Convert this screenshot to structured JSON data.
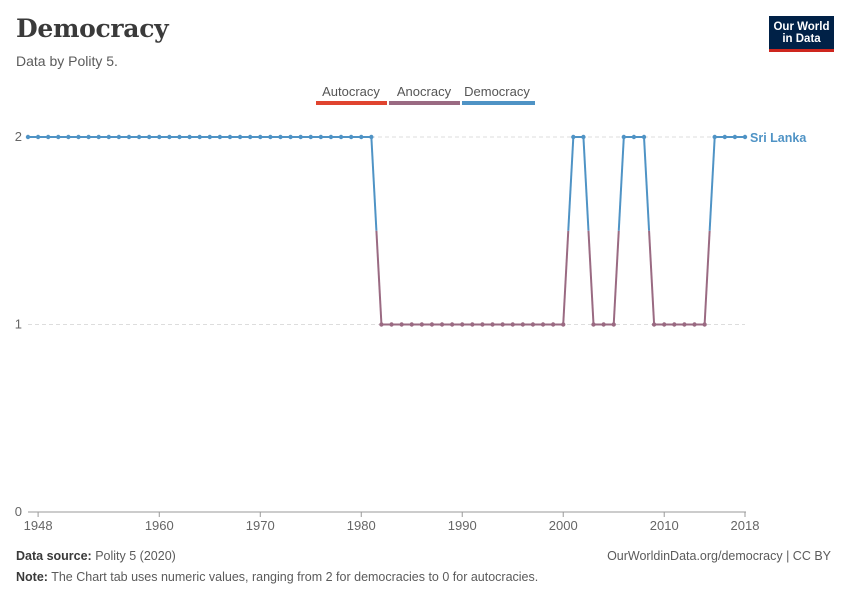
{
  "header": {
    "title": "Democracy",
    "subtitle": "Data by Polity 5.",
    "logo_line1": "Our World",
    "logo_line2": "in Data"
  },
  "colors": {
    "autocracy": "#e0442f",
    "anocracy": "#9a6a82",
    "democracy": "#4f93c5",
    "logo_bg": "#002147",
    "logo_accent": "#ce261e"
  },
  "chart_data": {
    "type": "line",
    "title": "Democracy",
    "xlabel": "",
    "ylabel": "",
    "xlim": [
      1947,
      2018
    ],
    "ylim": [
      0,
      2
    ],
    "x_ticks": [
      1948,
      1960,
      1970,
      1980,
      1990,
      2000,
      2010,
      2018
    ],
    "y_ticks": [
      0,
      1,
      2
    ],
    "legend": {
      "placement": "top-center",
      "entries": [
        {
          "label": "Autocracy",
          "color_key": "autocracy"
        },
        {
          "label": "Anocracy",
          "color_key": "anocracy"
        },
        {
          "label": "Democracy",
          "color_key": "democracy"
        }
      ]
    },
    "series": [
      {
        "name": "Sri Lanka",
        "start_year": 1947,
        "values": [
          2,
          2,
          2,
          2,
          2,
          2,
          2,
          2,
          2,
          2,
          2,
          2,
          2,
          2,
          2,
          2,
          2,
          2,
          2,
          2,
          2,
          2,
          2,
          2,
          2,
          2,
          2,
          2,
          2,
          2,
          2,
          2,
          2,
          2,
          2,
          1,
          1,
          1,
          1,
          1,
          1,
          1,
          1,
          1,
          1,
          1,
          1,
          1,
          1,
          1,
          1,
          1,
          1,
          1,
          2,
          2,
          1,
          1,
          1,
          2,
          2,
          2,
          1,
          1,
          1,
          1,
          1,
          1,
          2,
          2,
          2,
          2
        ]
      }
    ]
  },
  "footer": {
    "source_label": "Data source:",
    "source_value": "Polity 5 (2020)",
    "url": "OurWorldinData.org/democracy | CC BY",
    "note_label": "Note:",
    "note_text": "The Chart tab uses numeric values, ranging from 2 for democracies to 0 for autocracies."
  }
}
